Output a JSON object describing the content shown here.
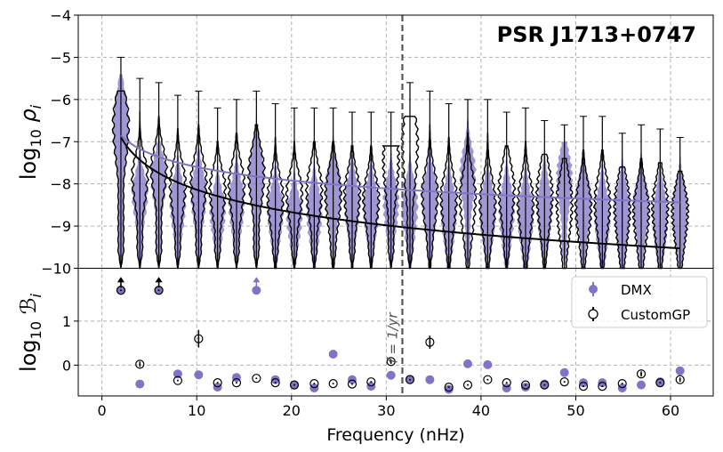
{
  "chart_data": [
    {
      "type": "violin",
      "title": "PSR J1713+0747",
      "ylabel": "log10 ρi",
      "ylim": [
        -10,
        -4
      ],
      "xlim": [
        -2.5,
        64.5
      ],
      "yticks": [
        -10,
        -9,
        -8,
        -7,
        -6,
        -5,
        -4
      ],
      "grid": true,
      "vertical_line": {
        "x": 31.7,
        "label": "f = 1/yr"
      },
      "x": [
        2,
        4,
        6,
        8,
        10.2,
        12.2,
        14.2,
        16.3,
        18.3,
        20.3,
        22.4,
        24.4,
        26.4,
        28.4,
        30.5,
        32.5,
        34.6,
        36.6,
        38.6,
        40.7,
        42.7,
        44.7,
        46.7,
        48.8,
        50.8,
        52.8,
        54.9,
        56.9,
        58.9,
        61
      ],
      "series": [
        {
          "name": "CustomGP",
          "color": "#000000",
          "tops": [
            -5.0,
            -5.5,
            -5.6,
            -5.9,
            -5.8,
            -6.2,
            -6.0,
            -5.8,
            -6.1,
            -6.2,
            -6.2,
            -6.2,
            -6.3,
            -6.3,
            -6.3,
            -5.6,
            -5.8,
            -6.1,
            -6.0,
            -6.0,
            -6.3,
            -6.2,
            -6.5,
            -6.6,
            -6.4,
            -6.4,
            -6.8,
            -6.6,
            -6.7,
            -6.9
          ],
          "mode": [
            -6.55,
            -7.8,
            -7.6,
            -8.0,
            -7.9,
            -8.1,
            -8.0,
            -7.7,
            -8.3,
            -8.2,
            -8.1,
            -8.2,
            -8.2,
            -8.3,
            -7.4,
            -7.0,
            -8.2,
            -8.3,
            -8.3,
            -8.4,
            -8.1,
            -8.4,
            -8.2,
            -8.4,
            -8.5,
            -8.4,
            -8.5,
            -8.6,
            -8.5,
            -8.6
          ],
          "width": [
            0.7,
            0.5,
            0.5,
            0.55,
            0.55,
            0.5,
            0.55,
            0.6,
            0.55,
            0.5,
            0.55,
            0.6,
            0.55,
            0.55,
            0.7,
            0.8,
            0.6,
            0.6,
            0.65,
            0.6,
            0.6,
            0.6,
            0.65,
            0.65,
            0.6,
            0.6,
            0.65,
            0.6,
            0.6,
            0.6
          ]
        },
        {
          "name": "DMX",
          "color": "#7f74c6",
          "mode": [
            -6.5,
            -8.2,
            -7.8,
            -8.4,
            -8.2,
            -8.6,
            -8.4,
            -7.7,
            -8.6,
            -8.7,
            -8.6,
            -8.1,
            -8.4,
            -8.5,
            -8.4,
            -8.5,
            -8.3,
            -8.6,
            -7.7,
            -8.6,
            -8.6,
            -8.7,
            -8.5,
            -7.8,
            -8.4,
            -8.7,
            -8.6,
            -8.5,
            -8.7,
            -8.6
          ],
          "width": [
            0.7,
            0.5,
            0.5,
            0.55,
            0.55,
            0.5,
            0.55,
            0.6,
            0.55,
            0.5,
            0.55,
            0.6,
            0.55,
            0.55,
            0.55,
            0.6,
            0.55,
            0.6,
            0.6,
            0.6,
            0.6,
            0.6,
            0.6,
            0.6,
            0.6,
            0.6,
            0.6,
            0.6,
            0.6,
            0.6
          ]
        }
      ],
      "fit_curves": [
        {
          "name": "DMX power-law",
          "color": "#7f74c6",
          "log10_amp_at_2nHz": -6.85,
          "slope_per_decade": -1.07
        },
        {
          "name": "CustomGP power-law",
          "color": "#000000",
          "log10_amp_at_2nHz": -6.9,
          "slope_per_decade": -1.77
        }
      ]
    },
    {
      "type": "scatter",
      "xlabel": "Frequency (nHz)",
      "ylabel": "log10 ℬi",
      "ylim": [
        -0.7,
        2.2
      ],
      "xlim": [
        -2.5,
        64.5
      ],
      "yticks": [
        0,
        1
      ],
      "xticks": [
        0,
        10,
        20,
        30,
        40,
        50,
        60
      ],
      "grid": true,
      "legend_position": "top-right",
      "x": [
        2,
        4,
        6,
        8,
        10.2,
        12.2,
        14.2,
        16.3,
        18.3,
        20.3,
        22.4,
        24.4,
        26.4,
        28.4,
        30.5,
        32.5,
        34.6,
        36.6,
        38.6,
        40.7,
        42.7,
        44.7,
        46.7,
        48.8,
        50.8,
        52.8,
        54.9,
        56.9,
        58.9,
        61
      ],
      "series": [
        {
          "name": "DMX",
          "color": "#7f74c6",
          "marker": "filled",
          "values": [
            1.7,
            -0.43,
            1.7,
            -0.2,
            -0.22,
            -0.5,
            -0.28,
            1.7,
            -0.33,
            -0.45,
            -0.52,
            0.25,
            -0.33,
            -0.48,
            -0.23,
            -0.32,
            -0.33,
            -0.55,
            0.03,
            0.01,
            -0.52,
            -0.5,
            -0.43,
            -0.17,
            -0.4,
            -0.4,
            -0.52,
            -0.45,
            -0.38,
            -0.13
          ],
          "errors": [
            0,
            0,
            0,
            0,
            0.06,
            0,
            0,
            0,
            0,
            0,
            0,
            0,
            0,
            0,
            0,
            0,
            0,
            0,
            0,
            0.08,
            0,
            0,
            0,
            0,
            0,
            0,
            0,
            0,
            0,
            0
          ],
          "upper_limit_arrows": [
            0,
            2,
            7
          ]
        },
        {
          "name": "CustomGP",
          "color": "#000000",
          "marker": "open",
          "values": [
            1.7,
            0.02,
            1.7,
            -0.35,
            0.6,
            -0.4,
            -0.4,
            -0.3,
            -0.4,
            -0.45,
            -0.42,
            -0.42,
            -0.43,
            -0.38,
            0.08,
            -0.33,
            0.52,
            -0.5,
            -0.45,
            -0.33,
            -0.4,
            -0.45,
            -0.45,
            -0.38,
            -0.48,
            -0.48,
            -0.42,
            -0.2,
            -0.4,
            -0.33
          ],
          "errors": [
            0,
            0.06,
            0,
            0,
            0.2,
            0,
            0,
            0,
            0,
            0,
            0,
            0,
            0,
            0,
            0.05,
            0,
            0.15,
            0,
            0,
            0,
            0,
            0,
            0,
            0,
            0,
            0,
            0,
            0.06,
            0,
            0.05
          ],
          "upper_limit_arrows": [
            0,
            2
          ]
        }
      ]
    }
  ]
}
